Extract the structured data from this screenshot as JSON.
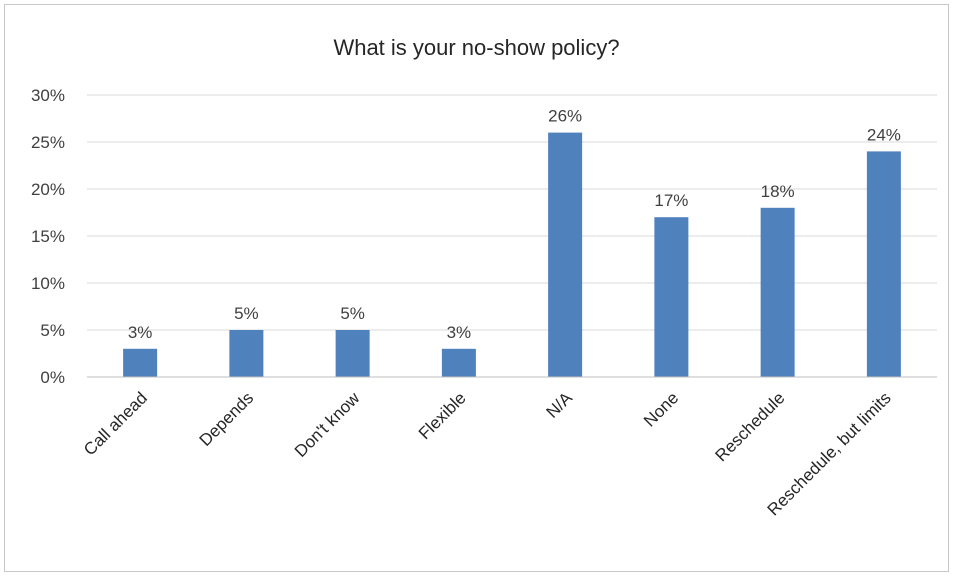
{
  "chart_data": {
    "type": "bar",
    "title": "What is your no-show policy?",
    "xlabel": "",
    "ylabel": "",
    "categories": [
      "Call ahead",
      "Depends",
      "Don't know",
      "Flexible",
      "N/A",
      "None",
      "Reschedule",
      "Reschedule, but limits"
    ],
    "values": [
      3,
      5,
      5,
      3,
      26,
      17,
      18,
      24
    ],
    "data_labels": [
      "3%",
      "5%",
      "5%",
      "3%",
      "26%",
      "17%",
      "18%",
      "24%"
    ],
    "ylim": [
      0,
      30
    ],
    "yticks": [
      0,
      5,
      10,
      15,
      20,
      25,
      30
    ],
    "ytick_labels": [
      "0%",
      "5%",
      "10%",
      "15%",
      "20%",
      "25%",
      "30%"
    ],
    "grid": true,
    "legend": "none",
    "bar_color": "#4f81bd"
  }
}
